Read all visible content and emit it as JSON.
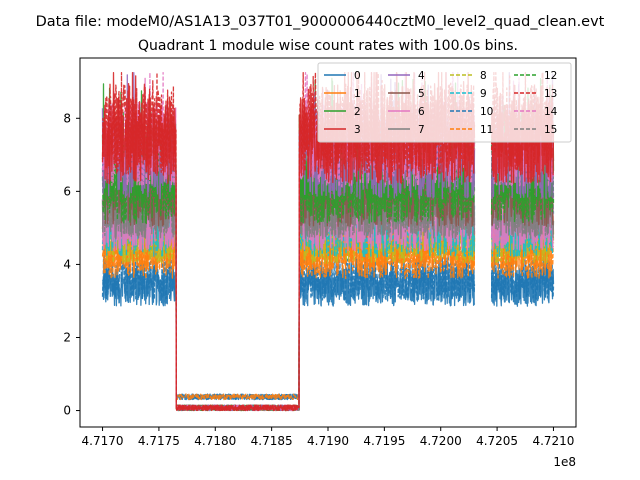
{
  "figure": {
    "suptitle": "Data file: modeM0/AS1A13_037T01_9000006440cztM0_level2_quad_clean.evt",
    "title": "Quadrant 1 module wise count rates with 100.0s bins."
  },
  "chart_data": {
    "type": "line",
    "title": "Quadrant 1 module wise count rates with 100.0s bins.",
    "xlabel": "",
    "ylabel": "",
    "x_offset_label": "1e8",
    "xlim": [
      471680000.0,
      472120000.0
    ],
    "ylim": [
      -0.45,
      9.65
    ],
    "grid": false,
    "legend": {
      "placement": "top-right",
      "ncol": 4
    },
    "x_ticks": [
      471700000.0,
      471750000.0,
      471800000.0,
      471850000.0,
      471900000.0,
      471950000.0,
      472000000.0,
      472050000.0,
      472100000.0
    ],
    "x_tick_labels": [
      "4.7170",
      "4.7175",
      "4.7180",
      "4.7185",
      "4.7190",
      "4.7195",
      "4.7200",
      "4.7205",
      "4.7210"
    ],
    "y_ticks": [
      0,
      2,
      4,
      6,
      8
    ],
    "y_tick_labels": [
      "0",
      "2",
      "4",
      "6",
      "8"
    ],
    "x_range_data": [
      471700000.0,
      472100000.0
    ],
    "gap_x": [
      472030000.0,
      472045000.0
    ],
    "dip_spacing": 1090000.0,
    "series": [
      {
        "name": "0",
        "color": "#1f77b4",
        "dash": "solid",
        "level": 3.4
      },
      {
        "name": "1",
        "color": "#ff7f0e",
        "dash": "solid",
        "level": 4.6
      },
      {
        "name": "2",
        "color": "#2ca02c",
        "dash": "solid",
        "level": 6.8
      },
      {
        "name": "3",
        "color": "#d62728",
        "dash": "solid",
        "level": 7.4
      },
      {
        "name": "4",
        "color": "#9467bd",
        "dash": "solid",
        "level": 6.9
      },
      {
        "name": "5",
        "color": "#8c564b",
        "dash": "solid",
        "level": 6.0
      },
      {
        "name": "6",
        "color": "#e377c2",
        "dash": "solid",
        "level": 5.2
      },
      {
        "name": "7",
        "color": "#7f7f7f",
        "dash": "solid",
        "level": 5.6
      },
      {
        "name": "8",
        "color": "#bcbd22",
        "dash": "dashed",
        "level": 4.8
      },
      {
        "name": "9",
        "color": "#17becf",
        "dash": "dashed",
        "level": 5.0
      },
      {
        "name": "10",
        "color": "#1f77b4",
        "dash": "dashed",
        "level": 3.6
      },
      {
        "name": "11",
        "color": "#ff7f0e",
        "dash": "dashed",
        "level": 4.3
      },
      {
        "name": "12",
        "color": "#2ca02c",
        "dash": "dashed",
        "level": 6.1
      },
      {
        "name": "13",
        "color": "#d62728",
        "dash": "dashed",
        "level": 7.7
      },
      {
        "name": "14",
        "color": "#e377c2",
        "dash": "dashed",
        "level": 7.3
      },
      {
        "name": "15",
        "color": "#7f7f7f",
        "dash": "dashed",
        "level": 5.7
      }
    ]
  }
}
